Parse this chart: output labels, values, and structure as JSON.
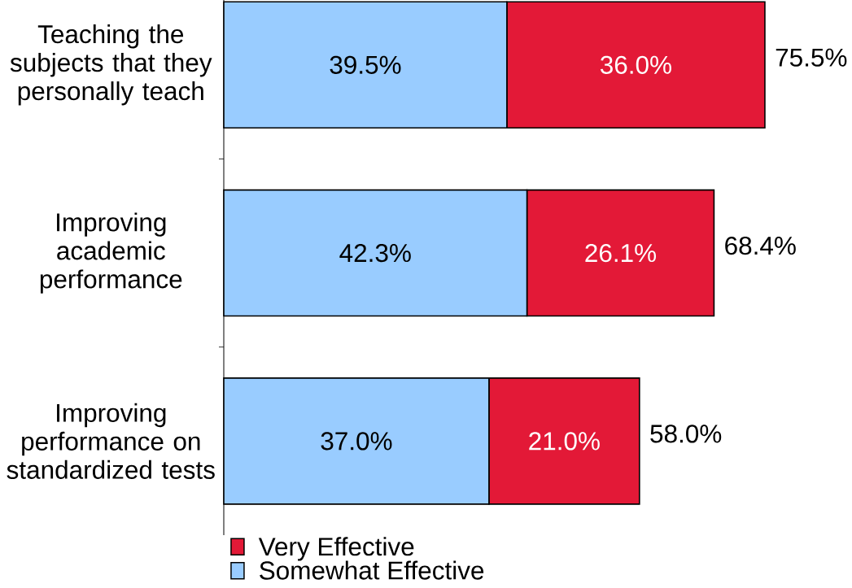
{
  "chart_data": {
    "type": "bar",
    "orientation": "horizontal",
    "stacked": true,
    "categories": [
      "Teaching the subjects that they personally teach",
      "Improving academic performance",
      "Improving performance on standardized tests"
    ],
    "series": [
      {
        "name": "Somewhat Effective",
        "color": "#99ccff",
        "values": [
          39.5,
          42.3,
          37.0
        ],
        "value_labels": [
          "39.5%",
          "42.3%",
          "37.0%"
        ]
      },
      {
        "name": "Very Effective",
        "color": "#e31937",
        "values": [
          36.0,
          26.1,
          21.0
        ],
        "value_labels": [
          "36.0%",
          "26.1%",
          "21.0%"
        ]
      }
    ],
    "totals": [
      "75.5%",
      "68.4%",
      "58.0%"
    ],
    "legend": "bottom left"
  }
}
